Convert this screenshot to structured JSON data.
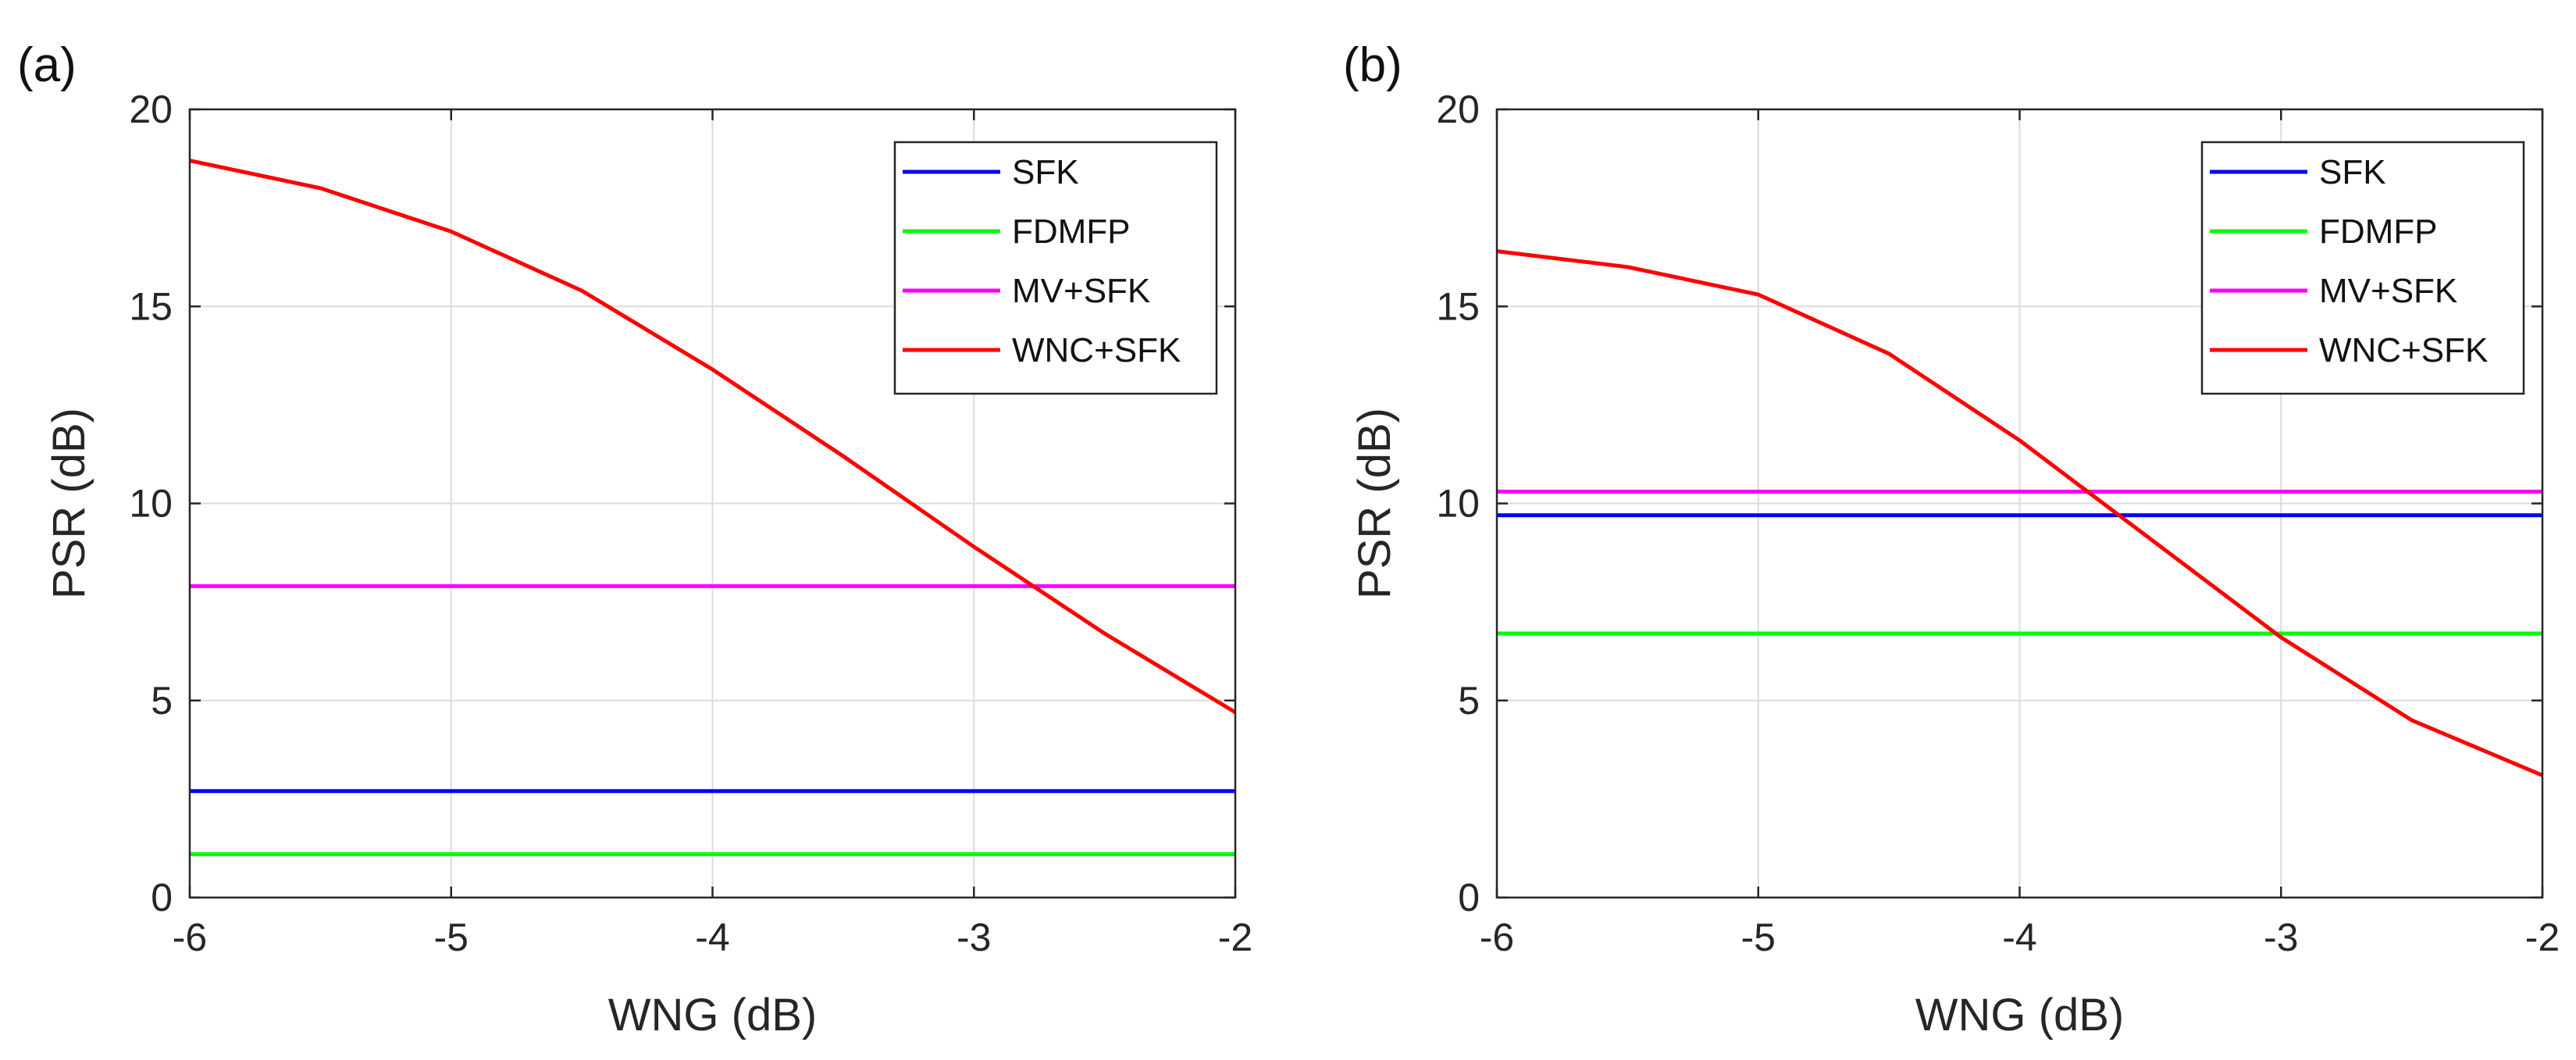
{
  "chart_data": [
    {
      "panel_label": "(a)",
      "type": "line",
      "title": "",
      "xlabel": "WNG (dB)",
      "ylabel": "PSR (dB)",
      "xlim": [
        -6,
        -2
      ],
      "ylim": [
        0,
        20
      ],
      "xticks": [
        -6,
        -5,
        -4,
        -3,
        -2
      ],
      "yticks": [
        0,
        5,
        10,
        15,
        20
      ],
      "xtick_labels": [
        "-6",
        "-5",
        "-4",
        "-3",
        "-2"
      ],
      "ytick_labels": [
        "0",
        "5",
        "10",
        "15",
        "20"
      ],
      "grid": true,
      "legend_position": "top-right",
      "series": [
        {
          "name": "SFK",
          "color": "#0000ff",
          "x": [
            -6,
            -2
          ],
          "y": [
            2.7,
            2.7
          ]
        },
        {
          "name": "FDMFP",
          "color": "#00ff00",
          "x": [
            -6,
            -2
          ],
          "y": [
            1.1,
            1.1
          ]
        },
        {
          "name": "MV+SFK",
          "color": "#ff00ff",
          "x": [
            -6,
            -2
          ],
          "y": [
            7.9,
            7.9
          ]
        },
        {
          "name": "WNC+SFK",
          "color": "#ff0000",
          "x": [
            -6,
            -5.5,
            -5,
            -4.5,
            -4,
            -3.5,
            -3,
            -2.5,
            -2
          ],
          "y": [
            18.7,
            18.0,
            16.9,
            15.4,
            13.4,
            11.2,
            8.9,
            6.7,
            4.7
          ]
        }
      ]
    },
    {
      "panel_label": "(b)",
      "type": "line",
      "title": "",
      "xlabel": "WNG (dB)",
      "ylabel": "PSR (dB)",
      "xlim": [
        -6,
        -2
      ],
      "ylim": [
        0,
        20
      ],
      "xticks": [
        -6,
        -5,
        -4,
        -3,
        -2
      ],
      "yticks": [
        0,
        5,
        10,
        15,
        20
      ],
      "xtick_labels": [
        "-6",
        "-5",
        "-4",
        "-3",
        "-2"
      ],
      "ytick_labels": [
        "0",
        "5",
        "10",
        "15",
        "20"
      ],
      "grid": true,
      "legend_position": "top-right",
      "series": [
        {
          "name": "SFK",
          "color": "#0000ff",
          "x": [
            -6,
            -2
          ],
          "y": [
            9.7,
            9.7
          ]
        },
        {
          "name": "FDMFP",
          "color": "#00ff00",
          "x": [
            -6,
            -2
          ],
          "y": [
            6.7,
            6.7
          ]
        },
        {
          "name": "MV+SFK",
          "color": "#ff00ff",
          "x": [
            -6,
            -2
          ],
          "y": [
            10.3,
            10.3
          ]
        },
        {
          "name": "WNC+SFK",
          "color": "#ff0000",
          "x": [
            -6,
            -5.5,
            -5,
            -4.5,
            -4,
            -3.5,
            -3,
            -2.5,
            -2
          ],
          "y": [
            16.4,
            16.0,
            15.3,
            13.8,
            11.6,
            9.1,
            6.6,
            4.5,
            3.1
          ]
        }
      ]
    }
  ]
}
